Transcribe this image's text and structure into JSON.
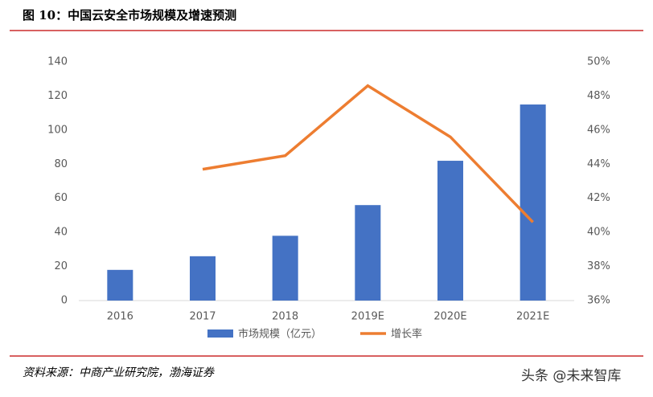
{
  "chart_data": {
    "type": "bar-line",
    "title": "图 10：中国云安全市场规模及增速预测",
    "categories": [
      "2016",
      "2017",
      "2018",
      "2019E",
      "2020E",
      "2021E"
    ],
    "series": [
      {
        "name": "市场规模（亿元）",
        "color": "#4472c4",
        "type": "bar",
        "values": [
          18,
          26,
          38,
          56,
          82,
          115
        ]
      },
      {
        "name": "增长率",
        "color": "#ed7d31",
        "type": "line",
        "axis": "y2",
        "values": [
          null,
          43.7,
          44.5,
          48.6,
          45.6,
          40.6
        ]
      }
    ],
    "ylim": [
      0,
      140
    ],
    "yticks": [
      0,
      20,
      40,
      60,
      80,
      100,
      120,
      140
    ],
    "y2lim": [
      36,
      50
    ],
    "y2ticks": [
      {
        "value": 36,
        "label": "36%"
      },
      {
        "value": 38,
        "label": "38%"
      },
      {
        "value": 40,
        "label": "40%"
      },
      {
        "value": 42,
        "label": "42%"
      },
      {
        "value": 44,
        "label": "44%"
      },
      {
        "value": 46,
        "label": "46%"
      },
      {
        "value": 48,
        "label": "48%"
      },
      {
        "value": 50,
        "label": "50%"
      }
    ],
    "grid": false,
    "legend": "bottom"
  },
  "source": "资料来源：中商产业研究院，渤海证券",
  "watermark": "头条 @未来智库"
}
